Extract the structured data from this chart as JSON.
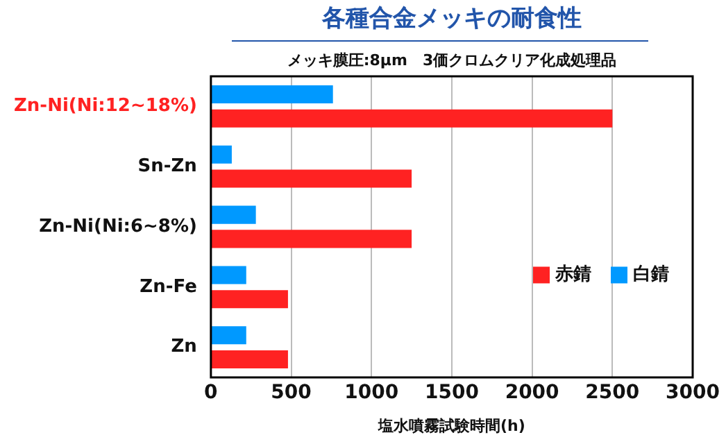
{
  "chart_data": {
    "type": "bar",
    "orientation": "horizontal",
    "title": "各種合金メッキの耐食性",
    "subtitle": "メッキ膜圧:8μm　3価クロムクリア化成処理品",
    "xlabel": "塩水噴霧試験時間(h)",
    "categories": [
      "Zn-Ni(Ni:12~18%)",
      "Sn-Zn",
      "Zn-Ni(Ni:6~8%)",
      "Zn-Fe",
      "Zn"
    ],
    "series": [
      {
        "name": "白錆",
        "color": "#0099ff",
        "values": [
          760,
          130,
          280,
          220,
          220
        ]
      },
      {
        "name": "赤錆",
        "color": "#ff2222",
        "values": [
          2500,
          1250,
          1250,
          480,
          480
        ]
      }
    ],
    "xlim": [
      0,
      3000
    ],
    "xticks": [
      0,
      500,
      1000,
      1500,
      2000,
      2500,
      3000
    ],
    "grid": "x",
    "legend": "right"
  }
}
